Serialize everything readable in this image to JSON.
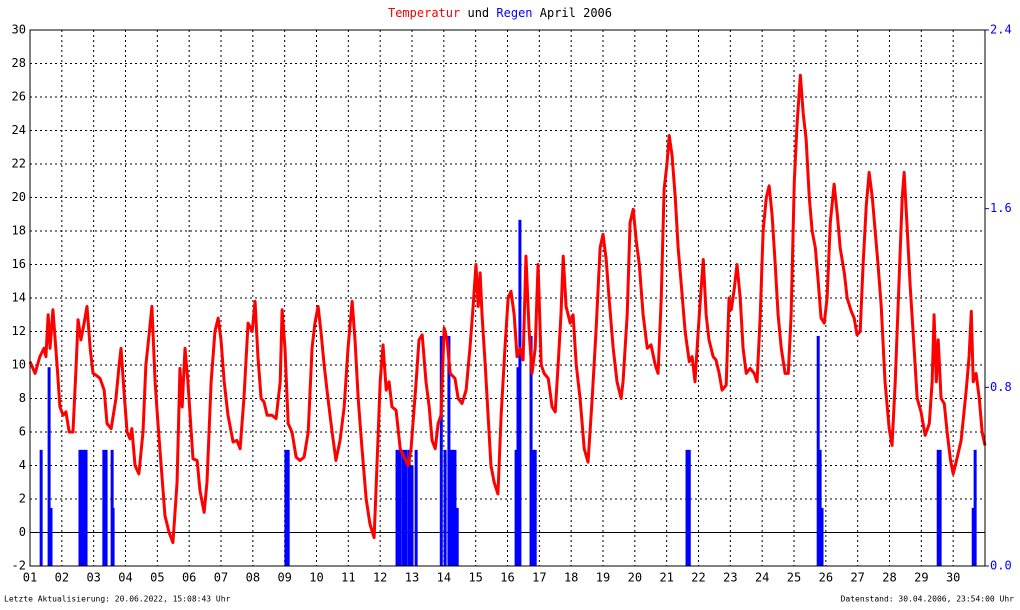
{
  "chart_data": {
    "type": "line",
    "title": {
      "joiner": "und",
      "period": "April 2006"
    },
    "footer_left": "Letzte Aktualisierung: 20.06.2022, 15:08:43 Uhr",
    "footer_right": "Datenstand: 30.04.2006, 23:54:00 Uhr",
    "xlim": [
      1,
      31
    ],
    "xticks": [
      {
        "value": 1,
        "label": "01"
      },
      {
        "value": 2,
        "label": "02"
      },
      {
        "value": 3,
        "label": "03"
      },
      {
        "value": 4,
        "label": "04"
      },
      {
        "value": 5,
        "label": "05"
      },
      {
        "value": 6,
        "label": "06"
      },
      {
        "value": 7,
        "label": "07"
      },
      {
        "value": 8,
        "label": "08"
      },
      {
        "value": 9,
        "label": "09"
      },
      {
        "value": 10,
        "label": "10"
      },
      {
        "value": 11,
        "label": "11"
      },
      {
        "value": 12,
        "label": "12"
      },
      {
        "value": 13,
        "label": "13"
      },
      {
        "value": 14,
        "label": "14"
      },
      {
        "value": 15,
        "label": "15"
      },
      {
        "value": 16,
        "label": "16"
      },
      {
        "value": 17,
        "label": "17"
      },
      {
        "value": 18,
        "label": "18"
      },
      {
        "value": 19,
        "label": "19"
      },
      {
        "value": 20,
        "label": "20"
      },
      {
        "value": 21,
        "label": "21"
      },
      {
        "value": 22,
        "label": "22"
      },
      {
        "value": 23,
        "label": "23"
      },
      {
        "value": 24,
        "label": "24"
      },
      {
        "value": 25,
        "label": "25"
      },
      {
        "value": 26,
        "label": "26"
      },
      {
        "value": 27,
        "label": "27"
      },
      {
        "value": 28,
        "label": "28"
      },
      {
        "value": 29,
        "label": "29"
      },
      {
        "value": 30,
        "label": "30"
      }
    ],
    "ylim": [
      -2,
      30
    ],
    "yticks": [
      -2,
      0,
      2,
      4,
      6,
      8,
      10,
      12,
      14,
      16,
      18,
      20,
      22,
      24,
      26,
      28,
      30
    ],
    "y2lim": [
      0,
      2.4
    ],
    "y2ticks": [
      {
        "value": 0,
        "label": "0.0"
      },
      0.8,
      1.6,
      2.4
    ],
    "grid": true,
    "series": [
      {
        "name": "Temperatur",
        "color": "#ff0000",
        "x": [
          1.0,
          1.16,
          1.31,
          1.44,
          1.5,
          1.57,
          1.63,
          1.72,
          1.85,
          1.94,
          2.04,
          2.13,
          2.23,
          2.35,
          2.45,
          2.51,
          2.6,
          2.7,
          2.79,
          2.89,
          2.98,
          3.07,
          3.2,
          3.33,
          3.42,
          3.55,
          3.7,
          3.8,
          3.86,
          3.95,
          4.05,
          4.14,
          4.2,
          4.3,
          4.42,
          4.55,
          4.64,
          4.74,
          4.83,
          4.93,
          5.02,
          5.12,
          5.24,
          5.37,
          5.49,
          5.62,
          5.71,
          5.78,
          5.87,
          5.96,
          6.12,
          6.25,
          6.34,
          6.47,
          6.56,
          6.69,
          6.81,
          6.91,
          7.0,
          7.1,
          7.22,
          7.38,
          7.5,
          7.6,
          7.72,
          7.85,
          7.98,
          8.07,
          8.16,
          8.26,
          8.35,
          8.45,
          8.6,
          8.73,
          8.86,
          8.92,
          9.01,
          9.11,
          9.23,
          9.36,
          9.48,
          9.61,
          9.74,
          9.86,
          9.95,
          10.05,
          10.14,
          10.24,
          10.36,
          10.49,
          10.61,
          10.74,
          10.87,
          10.99,
          11.12,
          11.21,
          11.31,
          11.43,
          11.56,
          11.68,
          11.81,
          11.9,
          12.0,
          12.09,
          12.19,
          12.28,
          12.37,
          12.5,
          12.63,
          12.75,
          12.88,
          12.97,
          13.07,
          13.13,
          13.22,
          13.32,
          13.44,
          13.54,
          13.63,
          13.73,
          13.82,
          13.91,
          14.01,
          14.1,
          14.2,
          14.35,
          14.45,
          14.57,
          14.7,
          14.82,
          14.92,
          15.01,
          15.08,
          15.14,
          15.2,
          15.3,
          15.39,
          15.48,
          15.58,
          15.7,
          15.8,
          15.92,
          16.02,
          16.11,
          16.21,
          16.3,
          16.4,
          16.49,
          16.58,
          16.68,
          16.77,
          16.87,
          16.96,
          17.06,
          17.15,
          17.28,
          17.4,
          17.5,
          17.59,
          17.68,
          17.75,
          17.84,
          17.97,
          18.06,
          18.16,
          18.28,
          18.41,
          18.53,
          18.66,
          18.78,
          18.91,
          19.0,
          19.1,
          19.19,
          19.32,
          19.44,
          19.57,
          19.63,
          19.76,
          19.85,
          19.95,
          20.04,
          20.14,
          20.26,
          20.39,
          20.51,
          20.64,
          20.73,
          20.83,
          20.92,
          21.01,
          21.08,
          21.17,
          21.27,
          21.36,
          21.45,
          21.58,
          21.71,
          21.8,
          21.89,
          21.99,
          22.08,
          22.15,
          22.24,
          22.33,
          22.46,
          22.55,
          22.65,
          22.74,
          22.87,
          22.96,
          23.03,
          23.12,
          23.21,
          23.31,
          23.4,
          23.5,
          23.62,
          23.75,
          23.84,
          23.94,
          24.03,
          24.13,
          24.22,
          24.31,
          24.41,
          24.5,
          24.6,
          24.72,
          24.82,
          24.91,
          25.01,
          25.1,
          25.2,
          25.29,
          25.38,
          25.48,
          25.57,
          25.67,
          25.76,
          25.85,
          25.95,
          26.04,
          26.14,
          26.26,
          26.36,
          26.45,
          26.58,
          26.67,
          26.8,
          26.89,
          26.98,
          27.08,
          27.17,
          27.27,
          27.36,
          27.46,
          27.55,
          27.64,
          27.74,
          27.86,
          27.99,
          28.08,
          28.18,
          28.3,
          28.4,
          28.46,
          28.56,
          28.65,
          28.74,
          28.87,
          28.99,
          29.12,
          29.25,
          29.34,
          29.4,
          29.47,
          29.53,
          29.62,
          29.72,
          29.81,
          29.91,
          30.0,
          30.13,
          30.25,
          30.41,
          30.5,
          30.57,
          30.63,
          30.72,
          30.82,
          30.91,
          31.0
        ],
        "values": [
          10.2,
          9.5,
          10.5,
          11,
          10.5,
          13,
          11,
          13.3,
          10,
          7.5,
          7,
          7.2,
          6,
          6,
          10,
          12.7,
          11.5,
          12.5,
          13.5,
          11,
          9.5,
          9.4,
          9.2,
          8.5,
          6.5,
          6.2,
          8,
          10,
          11,
          8.5,
          6,
          5.6,
          6.2,
          4,
          3.5,
          6,
          10,
          11.8,
          13.5,
          9,
          6.5,
          4,
          1,
          0,
          -0.6,
          3,
          9.8,
          7.5,
          11,
          9,
          4.4,
          4.3,
          2.5,
          1.2,
          3,
          9,
          12,
          12.8,
          11.5,
          9,
          7,
          5.4,
          5.5,
          5,
          8,
          12.5,
          12,
          13.8,
          10.5,
          8,
          7.8,
          7,
          7,
          6.8,
          9,
          13.3,
          11,
          6.5,
          6,
          4.5,
          4.3,
          4.5,
          6,
          11,
          12.5,
          13.5,
          12,
          10,
          8,
          6,
          4.3,
          5.5,
          7.5,
          11,
          13.8,
          11.5,
          8,
          5,
          2,
          0.5,
          -0.3,
          4,
          9,
          11.2,
          8.5,
          9,
          7.5,
          7.3,
          5,
          4.5,
          4,
          5,
          7.5,
          9,
          11.5,
          11.8,
          9,
          7.5,
          5.5,
          5,
          6.5,
          7,
          12.2,
          11.5,
          9.5,
          9.2,
          8,
          7.7,
          8.5,
          11,
          13.5,
          16,
          13.5,
          15.5,
          13,
          10,
          7,
          4,
          3,
          2.3,
          7,
          11,
          14,
          14.4,
          13,
          10.5,
          11,
          10.3,
          16.5,
          12,
          9.5,
          11,
          16,
          10,
          9.5,
          9.2,
          7.5,
          7.2,
          10,
          13,
          16.5,
          13.5,
          12.5,
          13,
          10,
          8,
          5,
          4.2,
          8,
          12,
          17,
          17.8,
          16.3,
          14,
          11,
          9,
          8,
          9,
          13,
          18.5,
          19.3,
          17.5,
          16,
          13,
          11,
          11.2,
          10,
          9.5,
          14,
          20.5,
          22,
          23.7,
          22.5,
          20,
          17,
          15,
          12,
          10.2,
          10.5,
          9,
          12,
          14.5,
          16.3,
          13,
          11.5,
          10.5,
          10.3,
          9.5,
          8.5,
          8.8,
          14,
          13.3,
          14.5,
          16,
          14,
          11,
          9.5,
          9.8,
          9.5,
          9,
          13,
          18,
          20,
          20.7,
          19,
          16,
          13,
          11,
          9.5,
          9.5,
          13,
          21,
          24.5,
          27.3,
          25,
          23.5,
          20,
          18,
          17,
          15,
          12.8,
          12.5,
          14,
          18.5,
          20.8,
          19,
          17,
          15.5,
          14,
          13.2,
          12.8,
          11.8,
          12,
          16,
          19.5,
          21.5,
          20,
          18,
          16,
          13.5,
          9,
          6.2,
          5.2,
          9,
          15,
          20,
          21.5,
          18,
          14.7,
          12,
          8,
          7.2,
          5.8,
          6.5,
          9,
          13,
          9,
          11.5,
          8,
          7.7,
          6,
          4.4,
          3.5,
          4.5,
          5.5,
          8.5,
          10.5,
          13.2,
          9,
          9.5,
          8,
          6,
          5.2
        ]
      },
      {
        "name": "Regen",
        "color": "#0000ff",
        "axis": "y2",
        "x": [
          1.35,
          1.6,
          1.66,
          2.57,
          2.63,
          2.7,
          2.76,
          3.32,
          3.39,
          3.58,
          3.61,
          9.04,
          9.11,
          12.53,
          12.62,
          12.72,
          12.81,
          12.91,
          13.0,
          13.13,
          13.92,
          14.04,
          14.16,
          14.23,
          14.29,
          14.35,
          14.42,
          16.27,
          16.33,
          16.39,
          16.74,
          16.8,
          16.87,
          21.64,
          21.71,
          25.76,
          25.82,
          25.88,
          29.53,
          29.59,
          30.63,
          30.69
        ],
        "values": [
          0.52,
          0.89,
          0.26,
          0.52,
          0.52,
          0.52,
          0.52,
          0.52,
          0.52,
          0.52,
          0.26,
          0.52,
          0.52,
          0.52,
          0.52,
          0.52,
          0.52,
          0.52,
          0.45,
          0.52,
          1.03,
          0.52,
          1.03,
          0.52,
          0.52,
          0.52,
          0.26,
          0.52,
          0.89,
          1.55,
          1.03,
          0.52,
          0.52,
          0.52,
          0.52,
          1.03,
          0.52,
          0.26,
          0.52,
          0.52,
          0.26,
          0.52
        ]
      }
    ]
  }
}
